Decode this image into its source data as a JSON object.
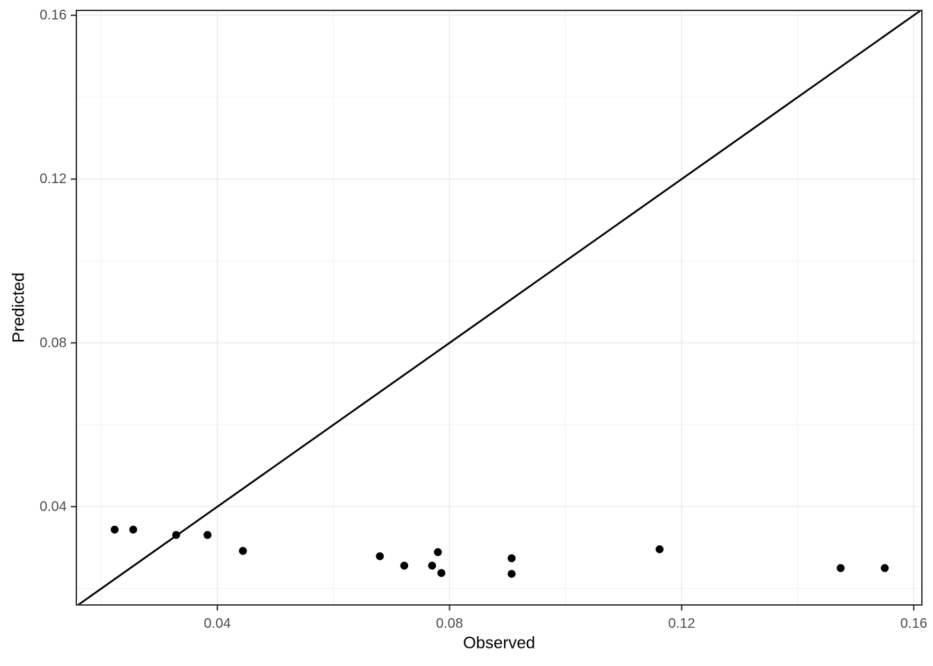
{
  "chart_data": {
    "type": "scatter",
    "title": "",
    "xlabel": "Observed",
    "ylabel": "Predicted",
    "x_major_ticks": [
      0.04,
      0.08,
      0.12,
      0.16
    ],
    "y_major_ticks": [
      0.04,
      0.08,
      0.12,
      0.16
    ],
    "x_minor_ticks": [
      0.02,
      0.06,
      0.1,
      0.14
    ],
    "y_minor_ticks": [
      0.02,
      0.06,
      0.1,
      0.14
    ],
    "x_tick_labels": [
      "0.04",
      "0.08",
      "0.12",
      "0.16"
    ],
    "y_tick_labels": [
      "0.04",
      "0.08",
      "0.12",
      "0.16"
    ],
    "xlim": [
      0.0157,
      0.1614
    ],
    "ylim": [
      0.016,
      0.1612
    ],
    "grid": true,
    "legend": "none",
    "points": [
      {
        "x": 0.0223,
        "y": 0.0344
      },
      {
        "x": 0.0255,
        "y": 0.0344
      },
      {
        "x": 0.0329,
        "y": 0.0331
      },
      {
        "x": 0.0383,
        "y": 0.0331
      },
      {
        "x": 0.0444,
        "y": 0.0292
      },
      {
        "x": 0.068,
        "y": 0.0279
      },
      {
        "x": 0.0722,
        "y": 0.0256
      },
      {
        "x": 0.077,
        "y": 0.0256
      },
      {
        "x": 0.078,
        "y": 0.0289
      },
      {
        "x": 0.0786,
        "y": 0.0238
      },
      {
        "x": 0.0907,
        "y": 0.0274
      },
      {
        "x": 0.0907,
        "y": 0.0236
      },
      {
        "x": 0.1162,
        "y": 0.0296
      },
      {
        "x": 0.1474,
        "y": 0.025
      },
      {
        "x": 0.155,
        "y": 0.025
      }
    ],
    "reference_line": {
      "type": "identity",
      "description": "y = x diagonal line from bottom-left to top-right corner"
    },
    "colors": {
      "background": "#ffffff",
      "panel_background": "#ffffff",
      "grid_major": "#ebebeb",
      "grid_minor": "#efefef",
      "panel_border": "#333333",
      "tick_mark": "#333333",
      "tick_label": "#4d4d4d",
      "axis_title": "#000000",
      "point": "#000000",
      "reference_line_color": "#000000"
    }
  }
}
